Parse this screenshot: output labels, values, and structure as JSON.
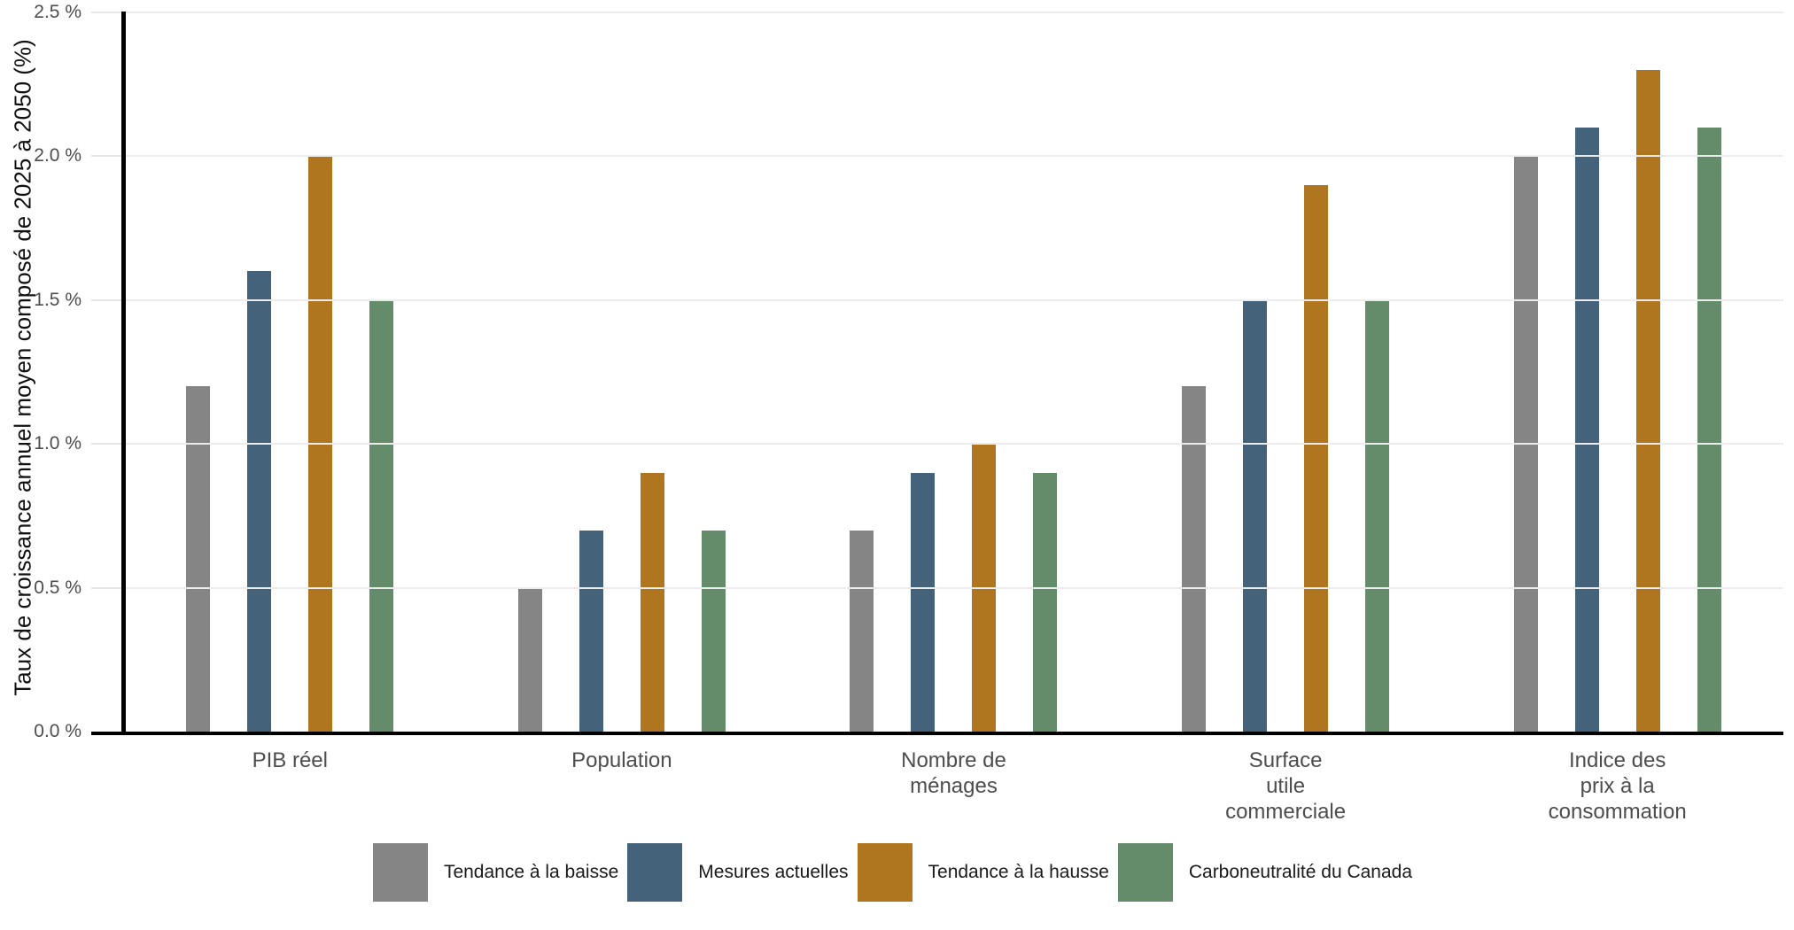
{
  "chart_data": {
    "type": "bar",
    "title": "",
    "xlabel": "",
    "ylabel": "Taux de croissance annuel moyen composé de 2025 à 2050 (%)",
    "ylim": [
      0,
      2.5
    ],
    "y_ticks": [
      {
        "value": 0.0,
        "label": "0.0 %"
      },
      {
        "value": 0.5,
        "label": "0.5 %"
      },
      {
        "value": 1.0,
        "label": "1.0 %"
      },
      {
        "value": 1.5,
        "label": "1.5 %"
      },
      {
        "value": 2.0,
        "label": "2.0 %"
      },
      {
        "value": 2.5,
        "label": "2.5 %"
      }
    ],
    "grid": true,
    "legend_position": "bottom",
    "categories": [
      "PIB réel",
      "Population",
      "Nombre de\nménages",
      "Surface\nutile\ncommerciale",
      "Indice des\nprix à la\nconsommation"
    ],
    "series": [
      {
        "name": "Tendance à la baisse",
        "color": "#858585",
        "values": [
          1.2,
          0.5,
          0.7,
          1.2,
          2.0
        ]
      },
      {
        "name": "Mesures actuelles",
        "color": "#44637a",
        "values": [
          1.6,
          0.7,
          0.9,
          1.5,
          2.1
        ]
      },
      {
        "name": "Tendance à la hausse",
        "color": "#b0761f",
        "values": [
          2.0,
          0.9,
          1.0,
          1.9,
          2.3
        ]
      },
      {
        "name": "Carboneutralité du Canada",
        "color": "#648c6a",
        "values": [
          1.5,
          0.7,
          0.9,
          1.5,
          2.1
        ]
      }
    ],
    "axis_colors": {
      "axis_line": "#000000",
      "gridline": "#ececec",
      "tick_label": "#4d4d4d",
      "category_label": "#4d4d4d",
      "axis_title": "#111111",
      "legend_text": "#1a1a1a"
    }
  }
}
